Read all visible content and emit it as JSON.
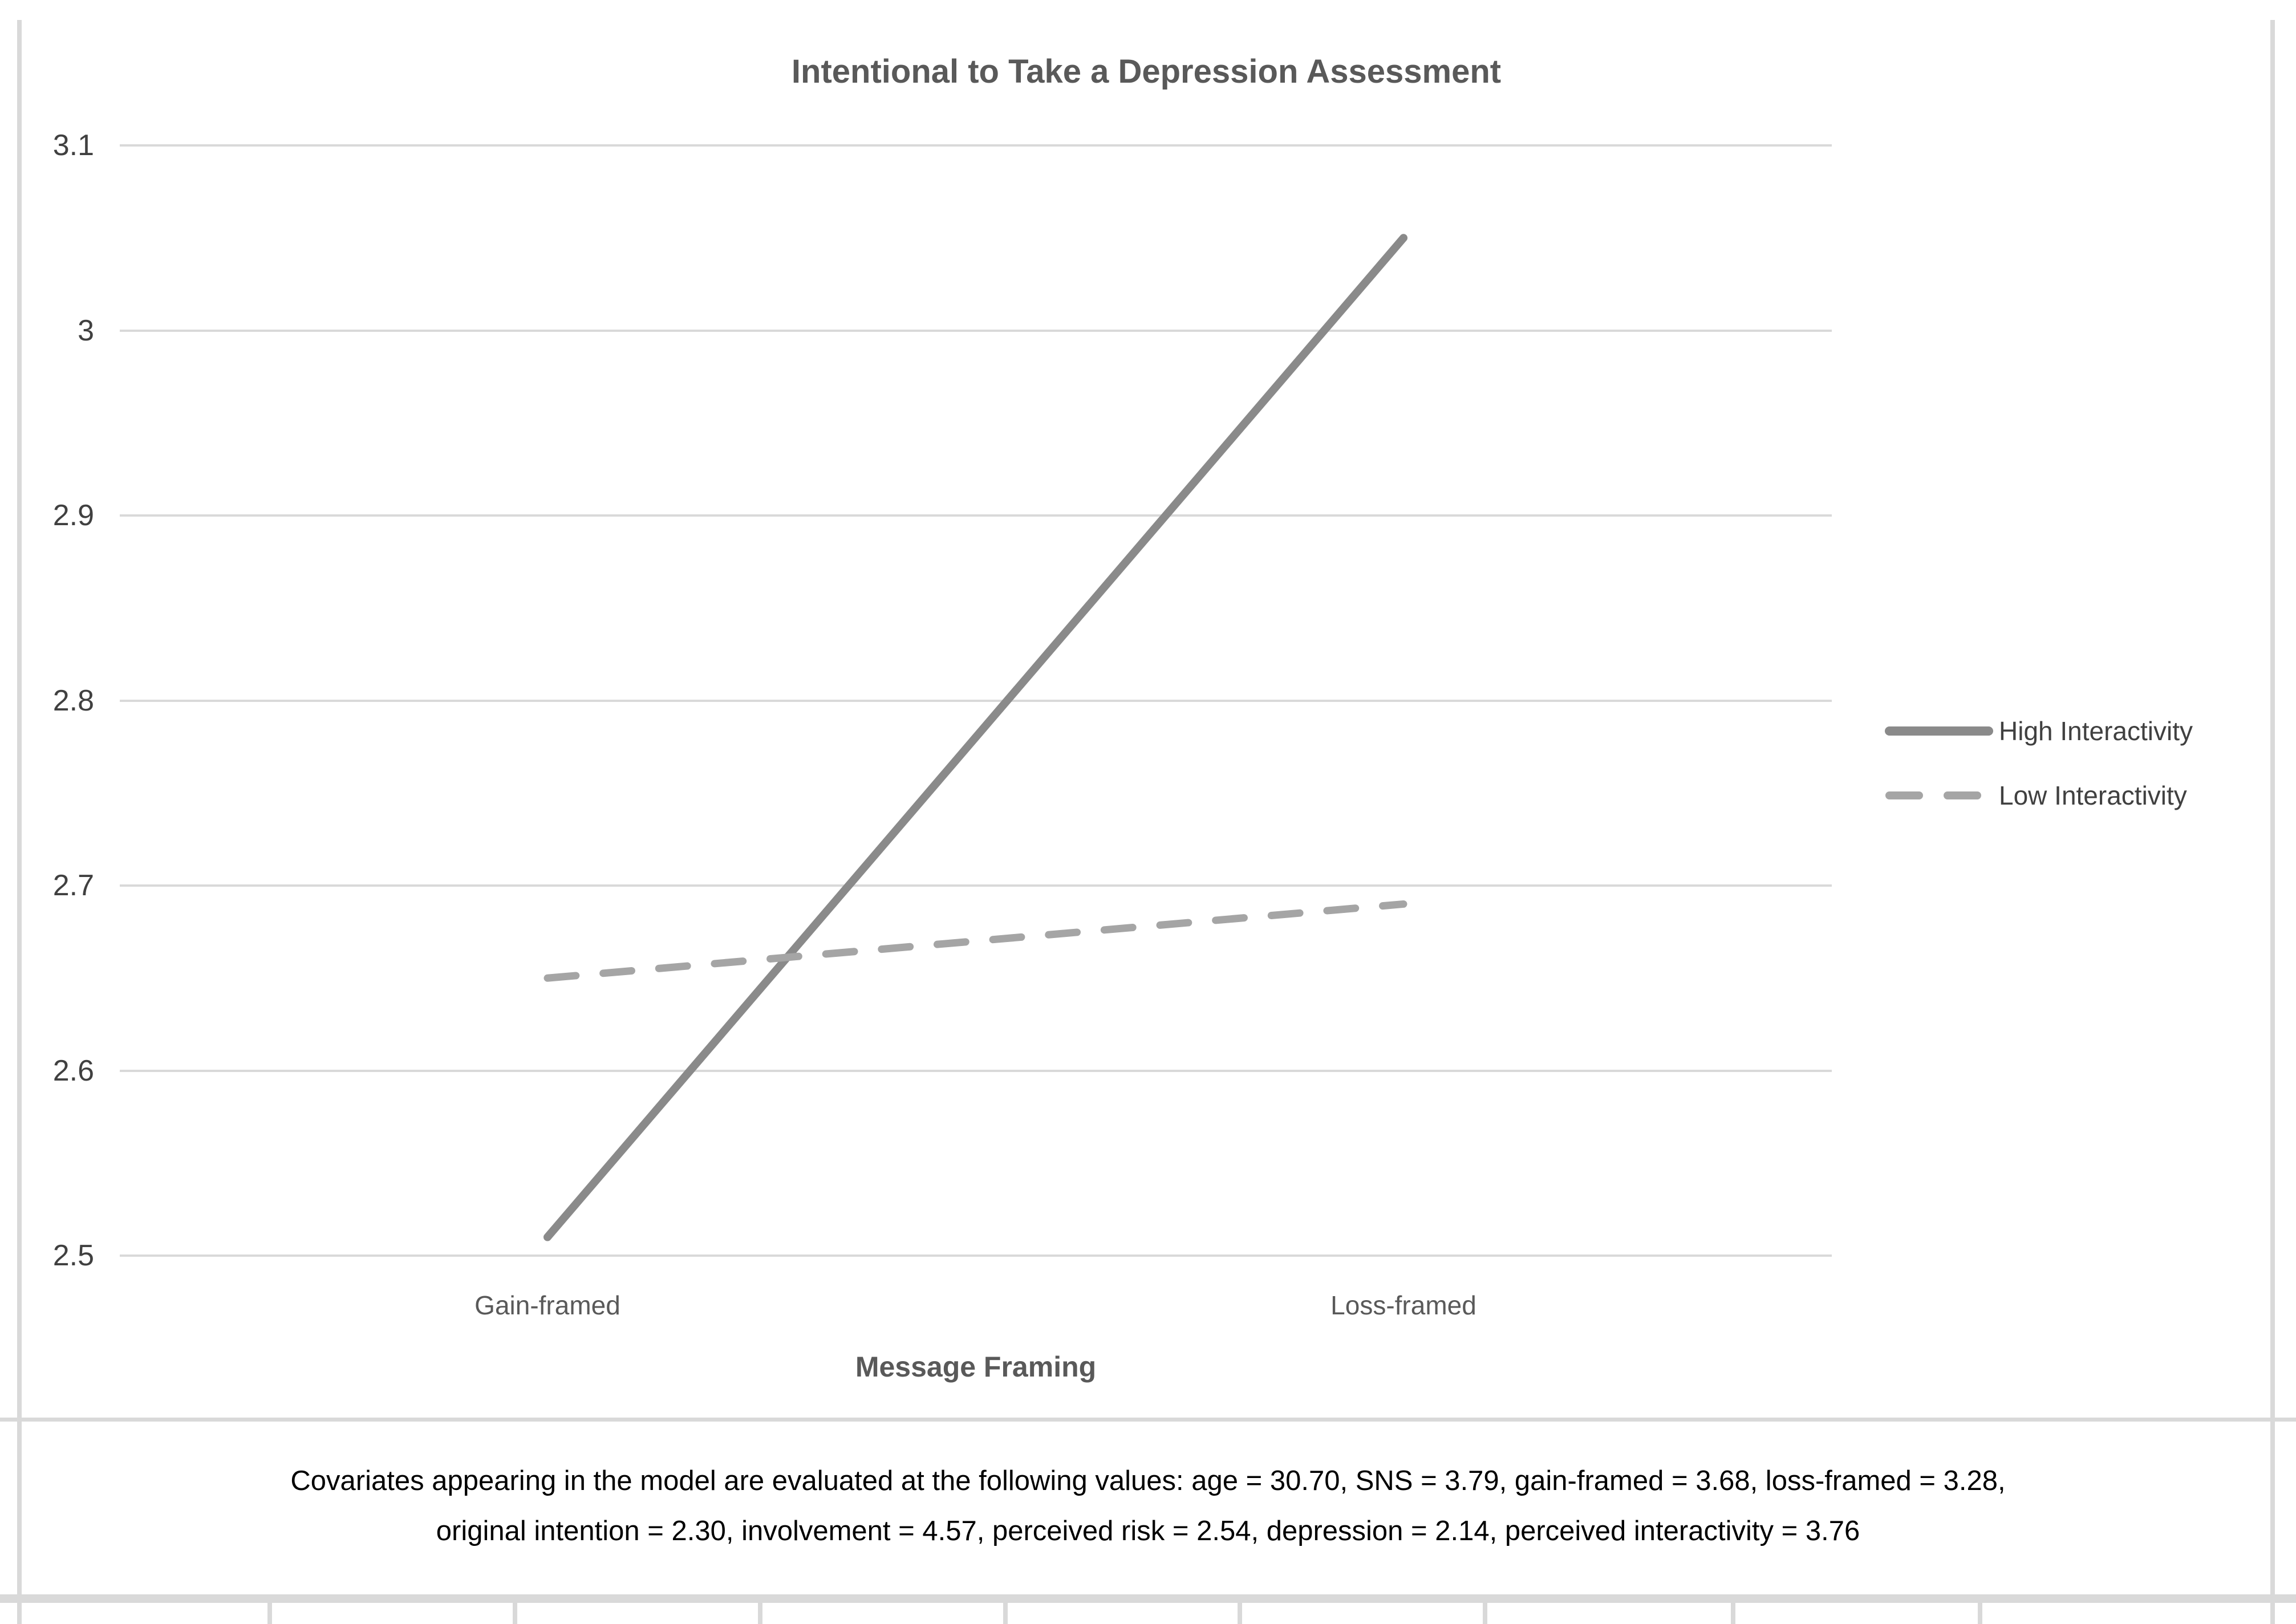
{
  "chart_data": {
    "type": "line",
    "title": "Intentional to Take a Depression Assessment",
    "xlabel": "Message Framing",
    "ylabel": "",
    "categories": [
      "Gain-framed",
      "Loss-framed"
    ],
    "series": [
      {
        "name": "High Interactivity",
        "style": "solid",
        "values": [
          2.51,
          3.05
        ]
      },
      {
        "name": "Low Interactivity",
        "style": "dashed",
        "values": [
          2.65,
          2.69
        ]
      }
    ],
    "ylim": [
      2.5,
      3.1
    ],
    "ytick_labels": [
      "3.1",
      "3",
      "2.9",
      "2.8",
      "2.7",
      "2.6",
      "2.5"
    ],
    "grid": true,
    "legend_position": "right"
  },
  "note": {
    "line1": "Covariates appearing in the model are evaluated at the following values: age = 30.70, SNS = 3.79, gain-framed = 3.68, loss-framed = 3.28,",
    "line2": "original intention = 2.30, involvement = 4.57, perceived risk = 2.54, depression = 2.14, perceived interactivity = 3.76"
  },
  "colors": {
    "solid_line": "#8a8a8a",
    "dashed_line": "#a5a5a5",
    "gridline": "#d9d9d9",
    "title_text": "#595959",
    "tick_text": "#404040",
    "note_text": "#000000",
    "border": "#d9d9d9"
  }
}
